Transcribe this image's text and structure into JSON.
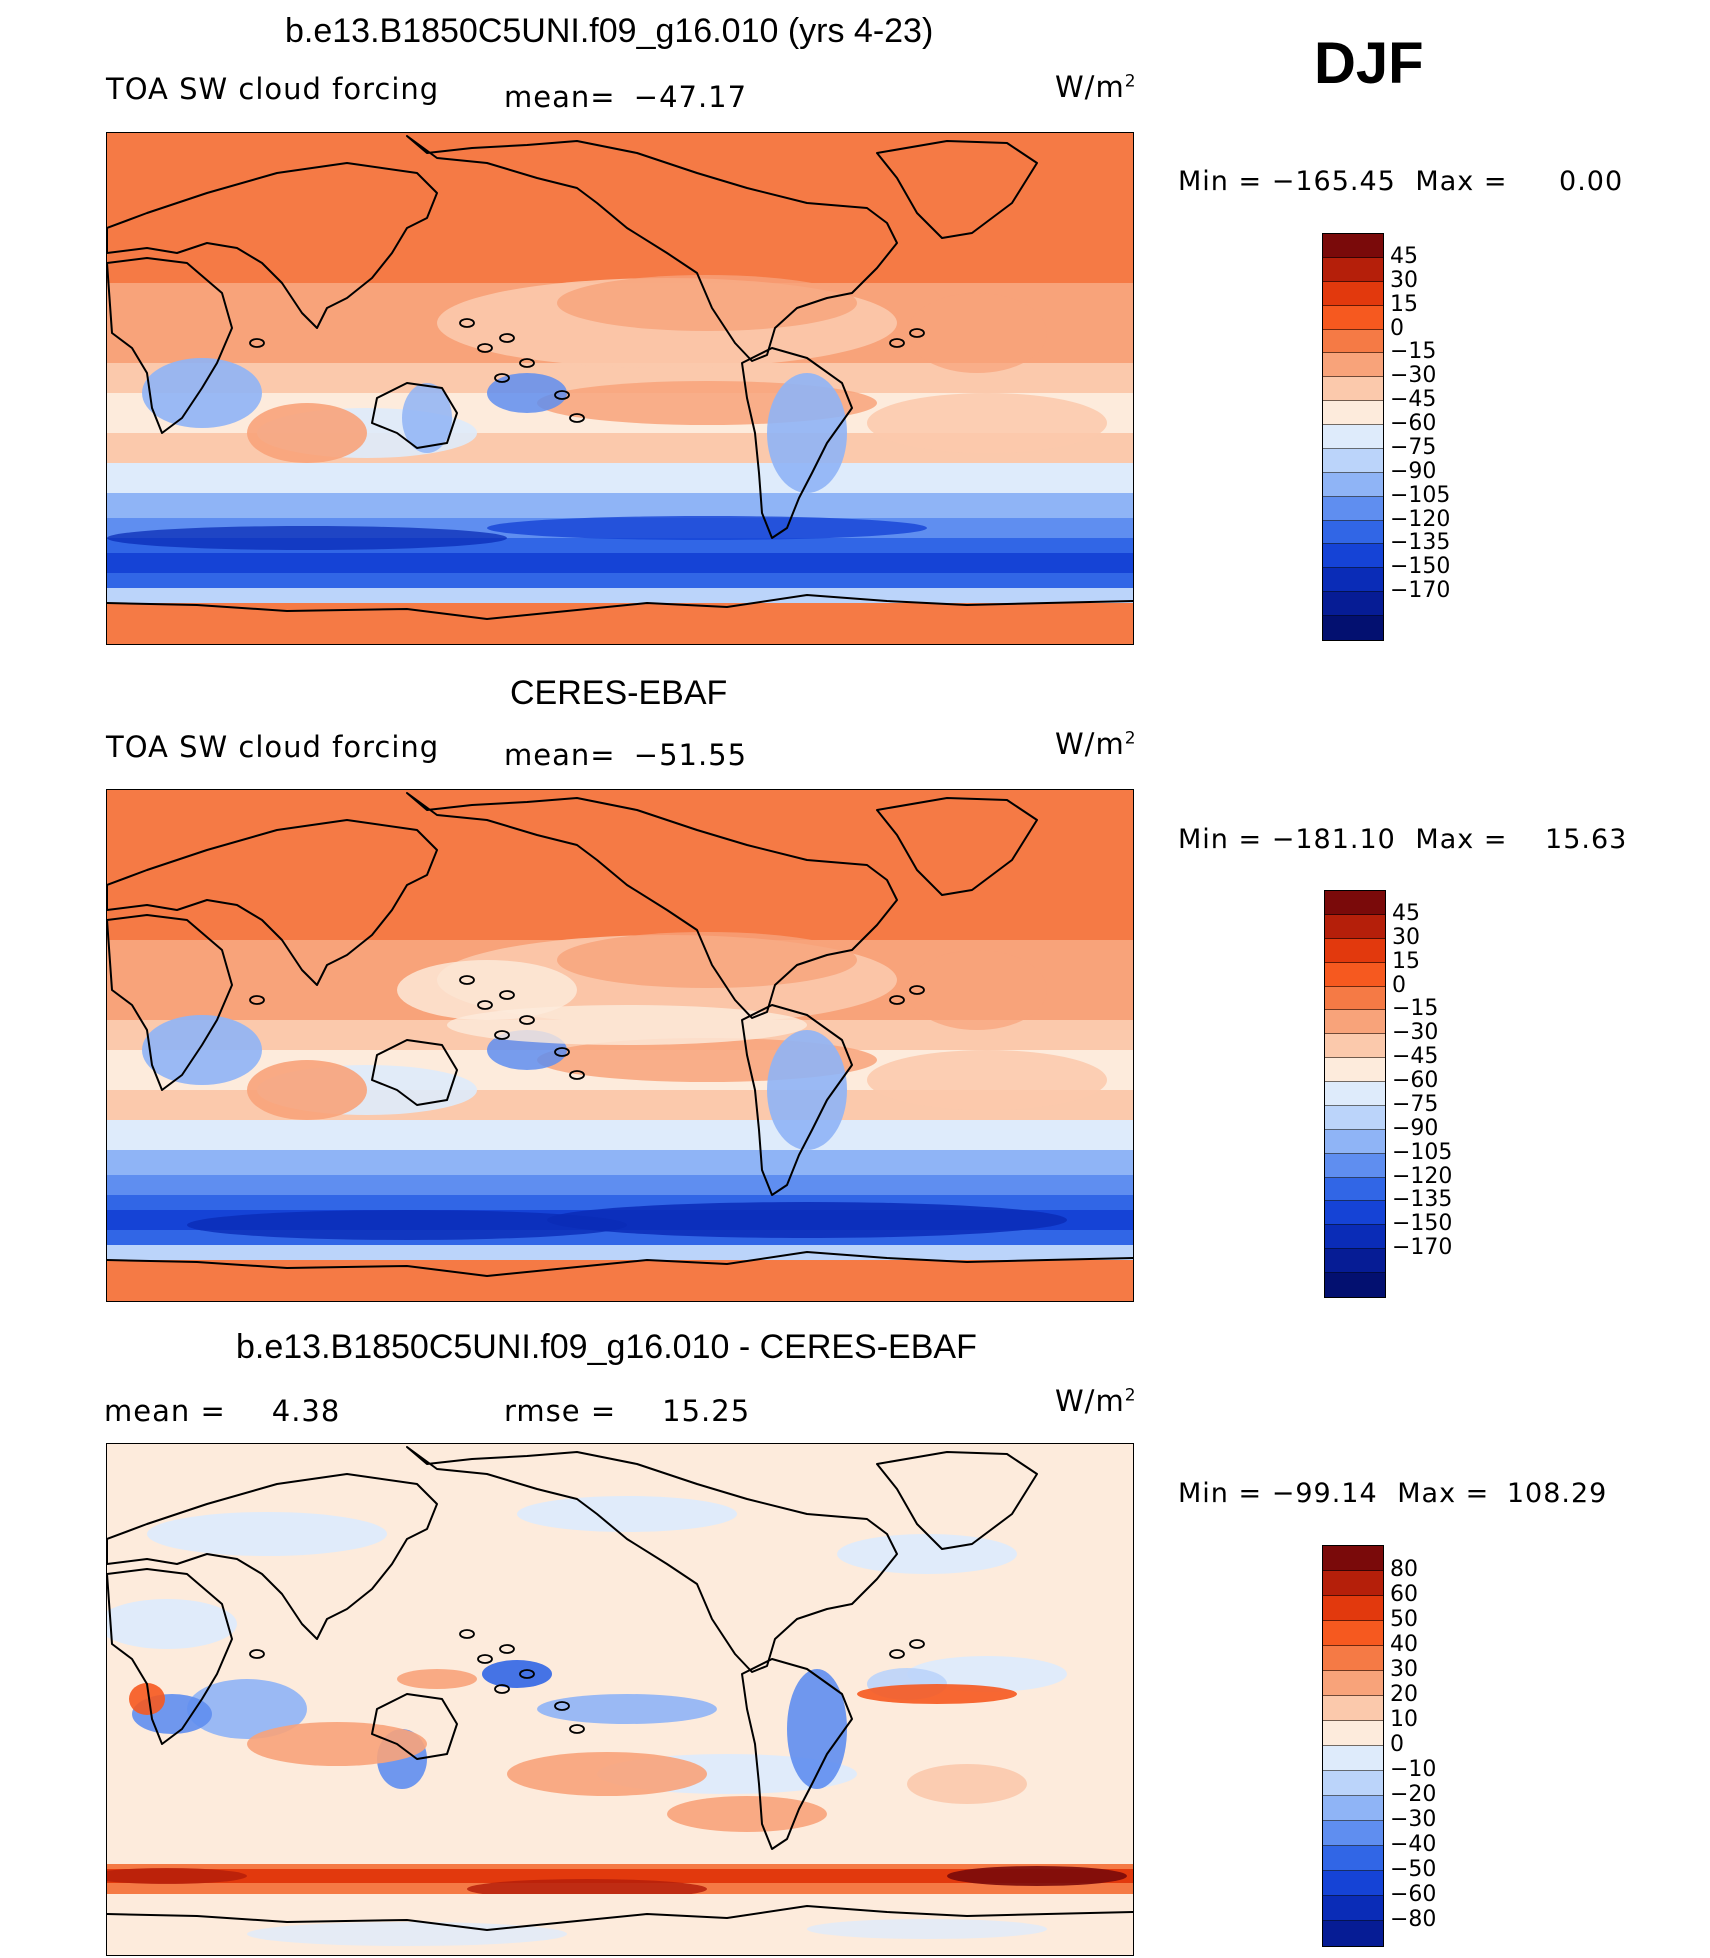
{
  "season": "DJF",
  "units": "W/m",
  "units_exp": "2",
  "palette": {
    "abs": [
      "#7a0a0a",
      "#b51f0a",
      "#e2390d",
      "#f6591f",
      "#f57a45",
      "#f8a37a",
      "#fbc9ac",
      "#fdebdc",
      "#deebfb",
      "#bbd4fa",
      "#8fb4f6",
      "#5f8ef0",
      "#3166e6",
      "#1543d6",
      "#0a2cb7",
      "#061c95",
      "#031070"
    ],
    "diff": [
      "#7a0a0a",
      "#b51f0a",
      "#e2390d",
      "#f6591f",
      "#f57a45",
      "#f8a37a",
      "#fbc9ac",
      "#fdebdc",
      "#deebfb",
      "#bbd4fa",
      "#8fb4f6",
      "#5f8ef0",
      "#3166e6",
      "#1543d6",
      "#0a2cb7",
      "#061c95"
    ]
  },
  "chart_data": [
    {
      "type": "heatmap",
      "title": "b.e13.B1850C5UNI.f09_g16.010 (yrs 4-23)",
      "subtitle": "TOA SW cloud forcing",
      "mean_label": "mean=",
      "mean": "−47.17",
      "min_label": "Min  =",
      "min": "−165.45",
      "max_label": "Max  =",
      "max": "0.00",
      "levels": [
        "45",
        "30",
        "15",
        "0",
        "−15",
        "−30",
        "−45",
        "−60",
        "−75",
        "−90",
        "−105",
        "−120",
        "−135",
        "−150",
        "−170"
      ]
    },
    {
      "type": "heatmap",
      "title": "CERES-EBAF",
      "subtitle": "TOA SW cloud forcing",
      "mean_label": "mean=",
      "mean": "−51.55",
      "min_label": "Min  =",
      "min": "−181.10",
      "max_label": "Max  =",
      "max": "15.63",
      "levels": [
        "45",
        "30",
        "15",
        "0",
        "−15",
        "−30",
        "−45",
        "−60",
        "−75",
        "−90",
        "−105",
        "−120",
        "−135",
        "−150",
        "−170"
      ]
    },
    {
      "type": "heatmap",
      "title": "b.e13.B1850C5UNI.f09_g16.010 - CERES-EBAF",
      "mean_label": "mean  =",
      "mean": "4.38",
      "rmse_label": "rmse  =",
      "rmse": "15.25",
      "min_label": "Min  =",
      "min": "−99.14",
      "max_label": "Max  =",
      "max": "108.29",
      "levels": [
        "80",
        "60",
        "50",
        "40",
        "30",
        "20",
        "10",
        "0",
        "−10",
        "−20",
        "−30",
        "−40",
        "−50",
        "−60",
        "−80"
      ]
    }
  ]
}
